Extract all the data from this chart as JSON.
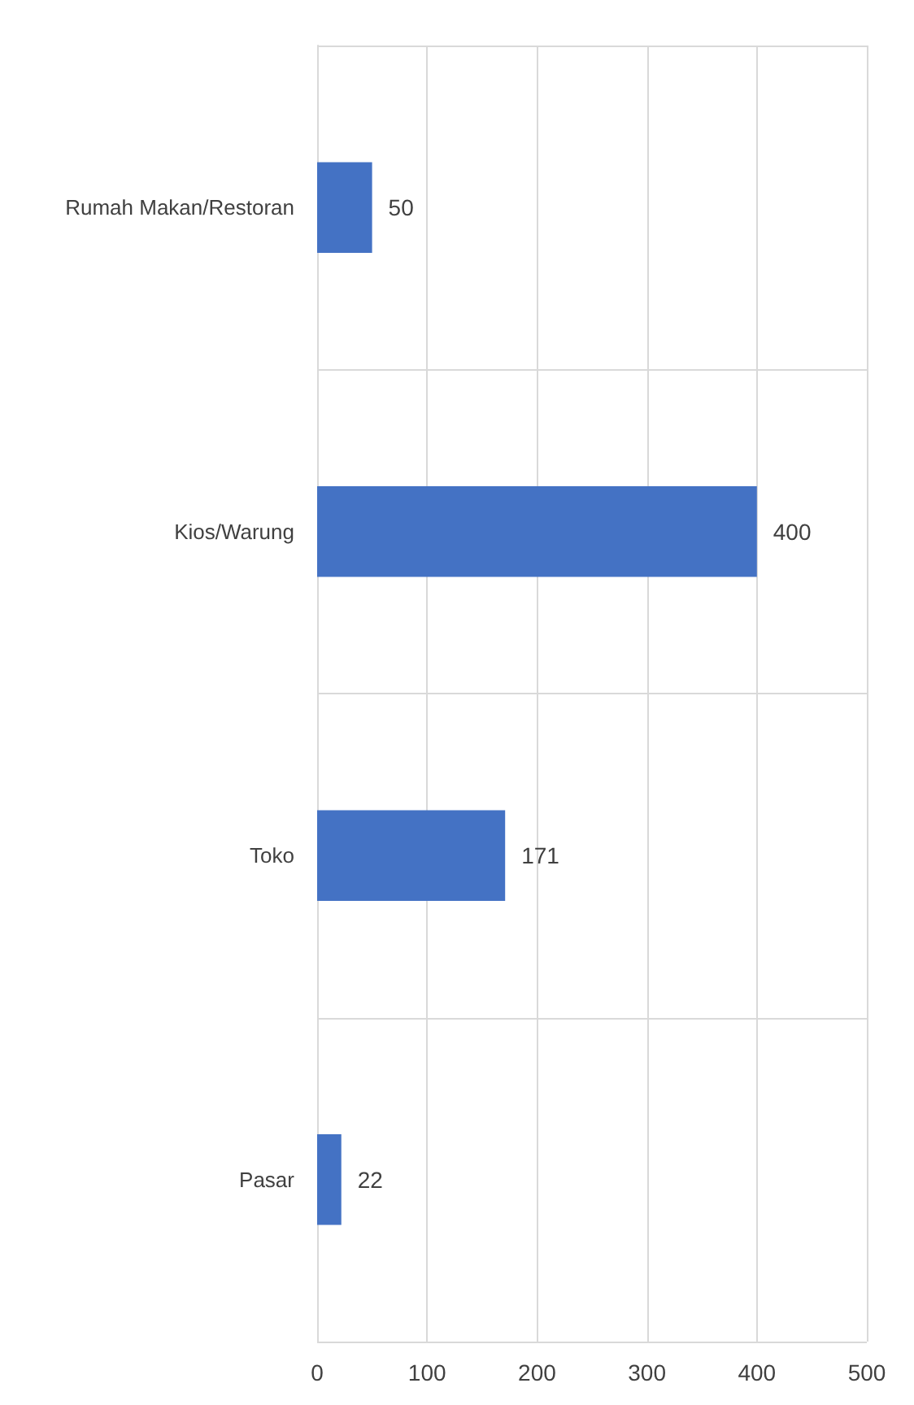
{
  "chart_data": {
    "type": "bar",
    "orientation": "horizontal",
    "categories": [
      "Rumah Makan/Restoran",
      "Kios/Warung",
      "Toko",
      "Pasar"
    ],
    "values": [
      50,
      400,
      171,
      22
    ],
    "color": "#4472c4",
    "xlim": [
      0,
      500
    ],
    "xticks": [
      0,
      100,
      200,
      300,
      400,
      500
    ],
    "grid": true,
    "data_labels": true
  }
}
